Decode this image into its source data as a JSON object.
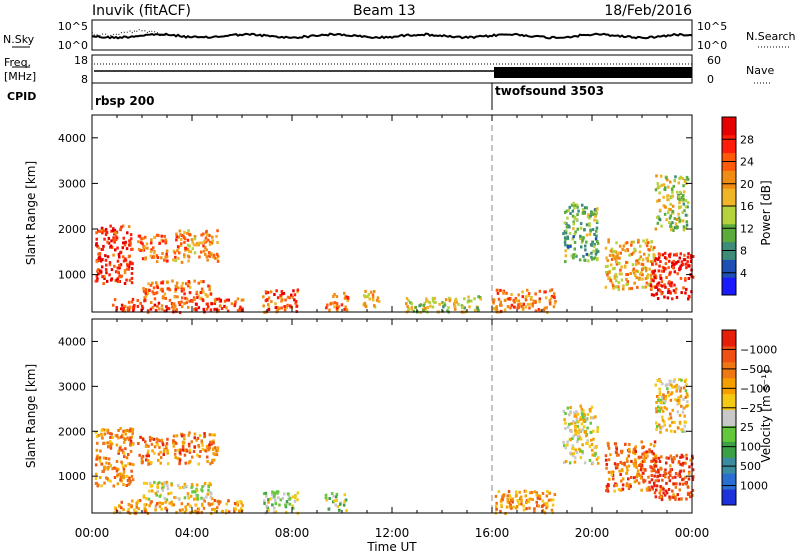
{
  "header": {
    "station": "Inuvik (fitACF)",
    "beam": "Beam 13",
    "date": "18/Feb/2016"
  },
  "left_labels": {
    "nsky": "N.Sky",
    "freq_line1": "Freq.",
    "freq_line2": "[MHz]",
    "cpid": "CPID"
  },
  "right_labels": {
    "nsearch": "N.Search",
    "nave": "Nave"
  },
  "noise_axis": {
    "top": "10^5",
    "bottom": "10^0"
  },
  "freq_axis": {
    "top": "18",
    "bottom": "8"
  },
  "nave_axis": {
    "top": "60",
    "bottom": "0"
  },
  "cpid_segments": [
    {
      "label": "rbsp 200",
      "start_hour": 0
    },
    {
      "label": "twofsound 3503",
      "start_hour": 16
    }
  ],
  "chart_data": [
    {
      "type": "heatmap",
      "name": "power",
      "xlabel": "",
      "ylabel": "Slant Range [km]",
      "xlim": [
        0,
        24
      ],
      "ylim": [
        180,
        4500
      ],
      "y_ticks": [
        1000,
        2000,
        3000,
        4000
      ],
      "colorbar": {
        "label": "Power [dB]",
        "ticks": [
          "4",
          "8",
          "12",
          "16",
          "20",
          "24",
          "28"
        ],
        "colors": [
          "#1a1aff",
          "#1e4fb4",
          "#3c8c78",
          "#5aaa3c",
          "#b4d23c",
          "#f0b428",
          "#f08c14",
          "#ff5a0a",
          "#ff1e0a",
          "#e60000"
        ]
      },
      "regions": [
        {
          "x": [
            0.1,
            1.6
          ],
          "y": [
            800,
            2100
          ],
          "level": 0.85
        },
        {
          "x": [
            1.8,
            3.0
          ],
          "y": [
            1300,
            1900
          ],
          "level": 0.72
        },
        {
          "x": [
            3.2,
            5.0
          ],
          "y": [
            1300,
            2000
          ],
          "level": 0.65
        },
        {
          "x": [
            2.0,
            4.8
          ],
          "y": [
            500,
            900
          ],
          "level": 0.7
        },
        {
          "x": [
            0.8,
            6.0
          ],
          "y": [
            200,
            500
          ],
          "level": 0.8
        },
        {
          "x": [
            6.8,
            8.2
          ],
          "y": [
            200,
            700
          ],
          "level": 0.75
        },
        {
          "x": [
            9.3,
            10.2
          ],
          "y": [
            250,
            650
          ],
          "level": 0.7
        },
        {
          "x": [
            10.8,
            11.5
          ],
          "y": [
            300,
            700
          ],
          "level": 0.55
        },
        {
          "x": [
            12.5,
            15.5
          ],
          "y": [
            200,
            550
          ],
          "level": 0.45
        },
        {
          "x": [
            16.0,
            18.5
          ],
          "y": [
            200,
            700
          ],
          "level": 0.7
        },
        {
          "x": [
            18.8,
            20.2
          ],
          "y": [
            1300,
            2600
          ],
          "level": 0.35
        },
        {
          "x": [
            20.5,
            22.5
          ],
          "y": [
            700,
            1800
          ],
          "level": 0.6
        },
        {
          "x": [
            22.3,
            24.0
          ],
          "y": [
            500,
            1500
          ],
          "level": 0.9
        },
        {
          "x": [
            22.5,
            23.8
          ],
          "y": [
            2000,
            3200
          ],
          "level": 0.45
        }
      ]
    },
    {
      "type": "heatmap",
      "name": "velocity",
      "xlabel": "Time UT",
      "ylabel": "Slant Range [km]",
      "xlim": [
        0,
        24
      ],
      "ylim": [
        180,
        4500
      ],
      "x_ticks": [
        "00:00",
        "04:00",
        "08:00",
        "12:00",
        "16:00",
        "20:00",
        "00:00"
      ],
      "y_ticks": [
        1000,
        2000,
        3000,
        4000
      ],
      "colorbar": {
        "label": "Velocity [m s⁻¹]",
        "ticks": [
          "1000",
          "500",
          "100",
          "25",
          "−25",
          "−100",
          "−500",
          "−1000"
        ],
        "colors": [
          "#1e32dc",
          "#2a6ed2",
          "#3c8ca0",
          "#3ca046",
          "#64c83c",
          "#c8c8c8",
          "#f5c814",
          "#f5a000",
          "#f07814",
          "#f05014",
          "#e61e0a"
        ]
      },
      "regions": [
        {
          "x": [
            0.1,
            1.6
          ],
          "y": [
            800,
            2100
          ],
          "level": 0.75
        },
        {
          "x": [
            1.8,
            3.0
          ],
          "y": [
            1300,
            1900
          ],
          "level": 0.78
        },
        {
          "x": [
            3.2,
            5.0
          ],
          "y": [
            1300,
            2000
          ],
          "level": 0.76
        },
        {
          "x": [
            2.0,
            4.8
          ],
          "y": [
            500,
            900
          ],
          "level": 0.55
        },
        {
          "x": [
            0.8,
            6.0
          ],
          "y": [
            200,
            500
          ],
          "level": 0.7
        },
        {
          "x": [
            6.8,
            8.2
          ],
          "y": [
            200,
            700
          ],
          "level": 0.5
        },
        {
          "x": [
            9.3,
            10.2
          ],
          "y": [
            250,
            650
          ],
          "level": 0.45
        },
        {
          "x": [
            16.0,
            18.5
          ],
          "y": [
            200,
            700
          ],
          "level": 0.72
        },
        {
          "x": [
            18.8,
            20.2
          ],
          "y": [
            1300,
            2600
          ],
          "level": 0.55
        },
        {
          "x": [
            20.5,
            22.5
          ],
          "y": [
            700,
            1800
          ],
          "level": 0.8
        },
        {
          "x": [
            22.3,
            24.0
          ],
          "y": [
            500,
            1500
          ],
          "level": 0.88
        },
        {
          "x": [
            22.5,
            23.8
          ],
          "y": [
            2000,
            3200
          ],
          "level": 0.6
        }
      ]
    }
  ]
}
